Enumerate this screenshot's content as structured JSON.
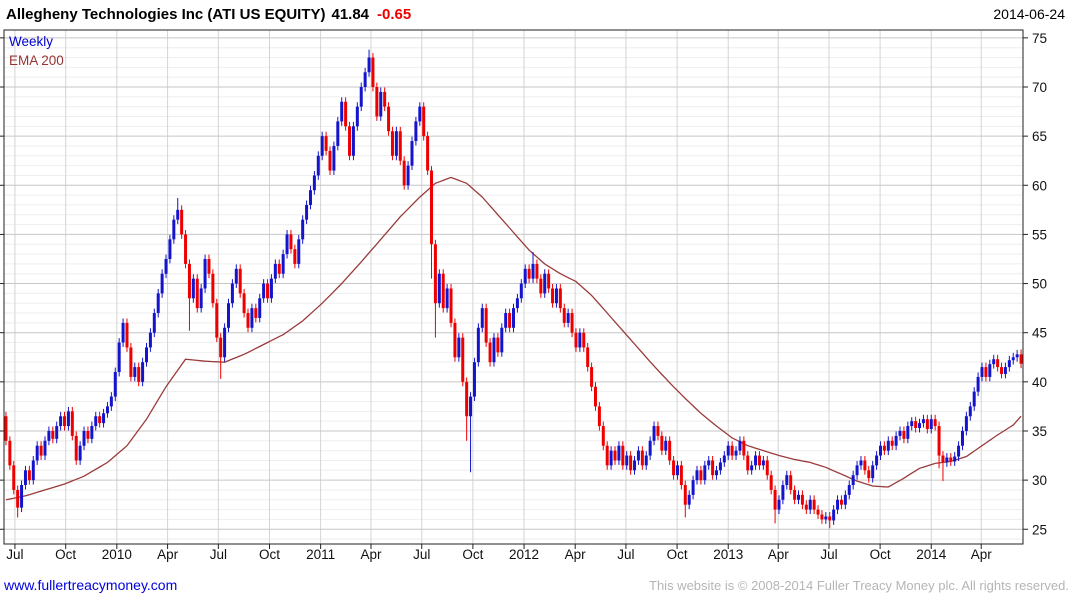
{
  "header": {
    "title": "Allegheny Technologies Inc (ATI US EQUITY)",
    "price": "41.84",
    "change": "-0.65",
    "date": "2014-06-24"
  },
  "legend": {
    "timeframe": "Weekly",
    "ema": "EMA 200"
  },
  "footer": {
    "site": "www.fullertreacymoney.com",
    "copyright": "This website is © 2008-2014 Fuller Treacy Money plc. All rights reserved."
  },
  "colors": {
    "up_candle": "#1414cd",
    "down_candle": "#ee0000",
    "ema_line": "#9a3b3b",
    "legend_weekly": "#0000cc",
    "legend_ema": "#993333",
    "change_negative": "#ee0000",
    "link": "#0000dd",
    "copyright_text": "#b5b5b5",
    "grid_minor": "#eeeeee",
    "grid_major": "#c6c6c6",
    "grid_vertical": "#d4d4d4",
    "plot_border": "#222222",
    "axis_text": "#111111"
  },
  "chart_data": {
    "type": "candlestick",
    "timeframe": "weekly",
    "series_name": "ATI US EQUITY weekly price",
    "overlay": "EMA 200",
    "x_start": "2009-06",
    "x_end": "2014-06-24",
    "y_range": [
      23.5,
      75.8
    ],
    "y_ticks": [
      25,
      30,
      35,
      40,
      45,
      50,
      55,
      60,
      65,
      70,
      75
    ],
    "x_ticks": [
      {
        "label": "Jul",
        "week": 2.3
      },
      {
        "label": "Oct",
        "week": 15.3
      },
      {
        "label": "2010",
        "week": 28.4
      },
      {
        "label": "Apr",
        "week": 41.4
      },
      {
        "label": "Jul",
        "week": 54.4
      },
      {
        "label": "Oct",
        "week": 67.5
      },
      {
        "label": "2011",
        "week": 80.6
      },
      {
        "label": "Apr",
        "week": 93.5
      },
      {
        "label": "Jul",
        "week": 106.5
      },
      {
        "label": "Oct",
        "week": 119.6
      },
      {
        "label": "2012",
        "week": 132.7
      },
      {
        "label": "Apr",
        "week": 145.8
      },
      {
        "label": "Jul",
        "week": 158.8
      },
      {
        "label": "Oct",
        "week": 171.9
      },
      {
        "label": "2013",
        "week": 185.0
      },
      {
        "label": "Apr",
        "week": 197.8
      },
      {
        "label": "Jul",
        "week": 210.8
      },
      {
        "label": "Oct",
        "week": 223.9
      },
      {
        "label": "2014",
        "week": 237.0
      },
      {
        "label": "Apr",
        "week": 249.8
      }
    ],
    "open_first": 36.5,
    "default_wick": 0.45,
    "weekly_closes": [
      34.0,
      31.5,
      29.0,
      27.2,
      29.5,
      31.0,
      30.0,
      32.0,
      33.5,
      32.5,
      34.0,
      35.0,
      34.2,
      35.5,
      36.5,
      35.5,
      37.0,
      34.5,
      32.0,
      33.5,
      35.0,
      34.2,
      35.5,
      36.5,
      35.8,
      36.8,
      37.5,
      38.5,
      41.0,
      44.0,
      46.0,
      43.5,
      40.5,
      41.5,
      40.0,
      42.0,
      43.5,
      45.0,
      47.0,
      49.0,
      51.0,
      52.5,
      54.5,
      56.5,
      57.5,
      55.0,
      52.0,
      48.5,
      50.5,
      47.5,
      49.5,
      52.5,
      51.0,
      48.0,
      44.5,
      42.5,
      45.5,
      48.0,
      50.0,
      51.5,
      49.0,
      47.0,
      45.5,
      47.5,
      46.5,
      48.5,
      50.0,
      48.5,
      50.5,
      52.0,
      51.0,
      53.0,
      55.0,
      53.5,
      52.0,
      54.5,
      56.5,
      58.0,
      59.5,
      61.0,
      63.0,
      65.0,
      63.5,
      61.5,
      64.0,
      66.5,
      68.5,
      66.0,
      63.0,
      66.0,
      68.0,
      70.0,
      71.5,
      73.0,
      70.0,
      67.0,
      69.5,
      68.0,
      65.5,
      63.0,
      65.5,
      62.5,
      60.0,
      62.0,
      64.5,
      66.5,
      68.0,
      65.0,
      61.5,
      54.0,
      48.0,
      51.0,
      47.5,
      49.5,
      46.0,
      42.5,
      44.5,
      40.0,
      36.5,
      38.5,
      42.0,
      45.5,
      47.5,
      44.0,
      42.0,
      44.5,
      43.0,
      45.5,
      47.0,
      45.5,
      47.5,
      48.5,
      50.0,
      51.5,
      50.5,
      52.0,
      50.5,
      49.0,
      51.0,
      49.5,
      48.0,
      49.5,
      47.5,
      46.0,
      47.0,
      45.0,
      43.5,
      45.0,
      43.5,
      41.5,
      39.5,
      37.5,
      35.5,
      33.5,
      31.5,
      33.0,
      32.0,
      33.5,
      31.5,
      32.5,
      31.0,
      32.0,
      33.0,
      31.5,
      32.5,
      34.0,
      35.5,
      34.5,
      33.0,
      34.0,
      32.0,
      30.5,
      31.5,
      29.5,
      27.5,
      28.5,
      30.0,
      31.0,
      30.0,
      31.5,
      32.0,
      30.5,
      31.0,
      31.8,
      32.5,
      33.5,
      32.5,
      33.0,
      34.0,
      32.5,
      31.0,
      31.5,
      32.5,
      31.5,
      32.0,
      30.5,
      29.0,
      27.0,
      28.0,
      29.5,
      30.5,
      29.0,
      28.0,
      28.5,
      27.5,
      27.0,
      28.0,
      27.0,
      26.5,
      26.0,
      26.3,
      25.9,
      27.0,
      28.0,
      27.5,
      28.5,
      29.5,
      30.5,
      31.5,
      32.0,
      31.0,
      30.2,
      31.5,
      32.5,
      33.5,
      33.0,
      34.0,
      33.5,
      34.5,
      35.0,
      34.2,
      35.5,
      36.0,
      35.3,
      35.8,
      36.2,
      35.2,
      36.2,
      35.5,
      32.5,
      31.8,
      32.3,
      31.9,
      32.4,
      33.5,
      35.0,
      36.5,
      37.5,
      39.0,
      40.5,
      41.5,
      40.5,
      41.8,
      42.3,
      41.5,
      40.8,
      41.5,
      42.2,
      42.5,
      42.8,
      41.84
    ],
    "wick_overrides": {
      "3": {
        "lo": 26.2
      },
      "44": {
        "hi": 58.7
      },
      "47": {
        "lo": 45.2
      },
      "55": {
        "lo": 40.3
      },
      "93": {
        "hi": 73.8
      },
      "109": {
        "lo": 50.5
      },
      "110": {
        "lo": 44.5
      },
      "118": {
        "lo": 34.0
      },
      "119": {
        "lo": 30.8
      },
      "135": {
        "hi": 53.2
      },
      "174": {
        "lo": 26.2
      },
      "197": {
        "lo": 25.6
      },
      "211": {
        "lo": 25.1
      },
      "232": {
        "hi": 36.4
      },
      "239": {
        "lo": 31.2
      },
      "240": {
        "lo": 29.9
      },
      "260": {
        "hi": 43.3
      }
    },
    "ema_200": [
      [
        0,
        28.0
      ],
      [
        5,
        28.4
      ],
      [
        10,
        29.0
      ],
      [
        15,
        29.6
      ],
      [
        20,
        30.4
      ],
      [
        26,
        31.8
      ],
      [
        31,
        33.5
      ],
      [
        36,
        36.2
      ],
      [
        41,
        39.5
      ],
      [
        46,
        42.3
      ],
      [
        51,
        42.1
      ],
      [
        56,
        42.0
      ],
      [
        61,
        42.8
      ],
      [
        66,
        43.8
      ],
      [
        71,
        44.8
      ],
      [
        76,
        46.2
      ],
      [
        81,
        48.0
      ],
      [
        86,
        50.0
      ],
      [
        91,
        52.2
      ],
      [
        96,
        54.5
      ],
      [
        101,
        56.8
      ],
      [
        106,
        58.8
      ],
      [
        110,
        60.2
      ],
      [
        114,
        60.8
      ],
      [
        118,
        60.2
      ],
      [
        122,
        58.8
      ],
      [
        126,
        57.0
      ],
      [
        130,
        55.2
      ],
      [
        134,
        53.4
      ],
      [
        138,
        52.0
      ],
      [
        142,
        51.0
      ],
      [
        146,
        50.2
      ],
      [
        150,
        48.8
      ],
      [
        154,
        47.0
      ],
      [
        158,
        45.2
      ],
      [
        162,
        43.4
      ],
      [
        166,
        41.6
      ],
      [
        170,
        39.9
      ],
      [
        174,
        38.3
      ],
      [
        178,
        36.8
      ],
      [
        182,
        35.5
      ],
      [
        186,
        34.3
      ],
      [
        190,
        33.5
      ],
      [
        194,
        33.0
      ],
      [
        198,
        32.5
      ],
      [
        202,
        32.1
      ],
      [
        206,
        31.8
      ],
      [
        210,
        31.3
      ],
      [
        214,
        30.6
      ],
      [
        218,
        29.9
      ],
      [
        222,
        29.4
      ],
      [
        226,
        29.3
      ],
      [
        230,
        30.2
      ],
      [
        234,
        31.2
      ],
      [
        238,
        31.7
      ],
      [
        242,
        31.9
      ],
      [
        246,
        32.4
      ],
      [
        250,
        33.5
      ],
      [
        254,
        34.6
      ],
      [
        258,
        35.6
      ],
      [
        260,
        36.5
      ]
    ]
  }
}
